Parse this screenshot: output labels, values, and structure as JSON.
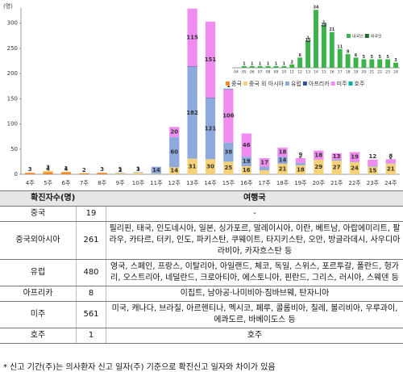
{
  "chart_data": [
    {
      "type": "bar",
      "stacked": true,
      "y_label": "(명)",
      "categories": [
        "4주",
        "5주",
        "6주",
        "7주",
        "8주",
        "9주",
        "10주",
        "11주",
        "12주",
        "13주",
        "14주",
        "15주",
        "16주",
        "17주",
        "18주",
        "19주",
        "20주",
        "21주",
        "22주",
        "23주",
        "24주"
      ],
      "series": [
        {
          "name": "중국",
          "color": "#f28b30",
          "values": [
            3,
            4,
            4,
            2,
            3,
            0,
            0,
            0,
            0,
            0,
            0,
            0,
            0,
            0,
            0,
            0,
            0,
            0,
            0,
            0,
            0
          ]
        },
        {
          "name": "중국 외 아시아",
          "color": "#f5d27a",
          "values": [
            0,
            3,
            1,
            0,
            0,
            2,
            3,
            1,
            14,
            31,
            30,
            25,
            16,
            8,
            21,
            18,
            29,
            27,
            24,
            15,
            21
          ]
        },
        {
          "name": "유럽",
          "color": "#8ea9db",
          "values": [
            0,
            0,
            0,
            0,
            0,
            1,
            1,
            14,
            60,
            182,
            121,
            38,
            19,
            7,
            14,
            5,
            0,
            2,
            1,
            2,
            1
          ]
        },
        {
          "name": "아프리카",
          "color": "#2f5597",
          "values": [
            0,
            0,
            0,
            0,
            0,
            0,
            0,
            0,
            0,
            1,
            1,
            0,
            0,
            0,
            0,
            0,
            0,
            0,
            0,
            0,
            0
          ]
        },
        {
          "name": "미주",
          "color": "#f08cf0",
          "values": [
            0,
            0,
            0,
            0,
            0,
            0,
            0,
            0,
            20,
            115,
            151,
            106,
            46,
            17,
            18,
            9,
            18,
            13,
            19,
            12,
            8
          ]
        },
        {
          "name": "호주",
          "color": "#00b0a0",
          "values": [
            0,
            0,
            0,
            0,
            0,
            0,
            0,
            0,
            0,
            0,
            0,
            1,
            0,
            0,
            0,
            0,
            0,
            0,
            0,
            0,
            0
          ]
        }
      ],
      "ylim": [
        0,
        330
      ],
      "yticks": [
        0,
        50,
        100,
        150,
        200,
        250,
        300
      ],
      "grid": false
    },
    {
      "type": "bar",
      "stacked": true,
      "categories": [
        "04",
        "05",
        "06",
        "07",
        "08",
        "09",
        "10",
        "11",
        "12",
        "13",
        "14",
        "15",
        "16",
        "17",
        "18",
        "19",
        "20",
        "21",
        "22",
        "23",
        "24"
      ],
      "series": [
        {
          "name": "내국인",
          "color": "#3cb44b",
          "values": [
            0,
            1,
            1,
            1,
            1,
            1,
            1,
            2,
            6,
            15,
            34,
            24,
            21,
            11,
            8,
            6,
            5,
            5,
            5,
            5,
            3
          ]
        },
        {
          "name": "외국인",
          "color": "#1e6b2a",
          "values": [
            0,
            0,
            0,
            0,
            0,
            0,
            0,
            0,
            0,
            1,
            0,
            1,
            0,
            0,
            0,
            0,
            0,
            0,
            0,
            0,
            0
          ]
        }
      ],
      "ylim": [
        0,
        36
      ]
    }
  ],
  "table": {
    "header": [
      "확진자수(명)",
      "여행국"
    ],
    "rows": [
      [
        "중국",
        "19",
        "-"
      ],
      [
        "중국외아시아",
        "261",
        "필리핀, 태국, 인도네시아, 일본, 싱가포르, 말레이시아, 이란, 베트남, 아랍에미리트, 팔라우, 카타르, 터키, 인도, 파키스탄, 쿠웨이트, 타지키스탄, 오만, 방글라데시, 사우디아라비아, 카자흐스탄 등"
      ],
      [
        "유럽",
        "480",
        "영국, 스페인, 프랑스, 이탈리아, 아일랜드, 체코, 독일, 스위스, 포르투갈, 폴란드, 헝가리, 오스트리아, 네덜란드, 크로아티아, 에스토니아, 핀란드, 그리스, 러시아, 스웨덴 등"
      ],
      [
        "아프리카",
        "8",
        "이집트, 남아공·나미비아·짐바브웨, 탄자니아"
      ],
      [
        "미주",
        "561",
        "미국, 캐나다, 브라질, 아르헨티나, 멕시코, 페루, 콜롬비아, 칠레, 볼리비아, 우루과이, 에콰도르, 바베이도스 등"
      ],
      [
        "호주",
        "1",
        "호주"
      ]
    ]
  },
  "footnote": "* 신고 기간(주)는 의사환자 신고 일자(주) 기준으로 확진신고 일자와 차이가 있음"
}
